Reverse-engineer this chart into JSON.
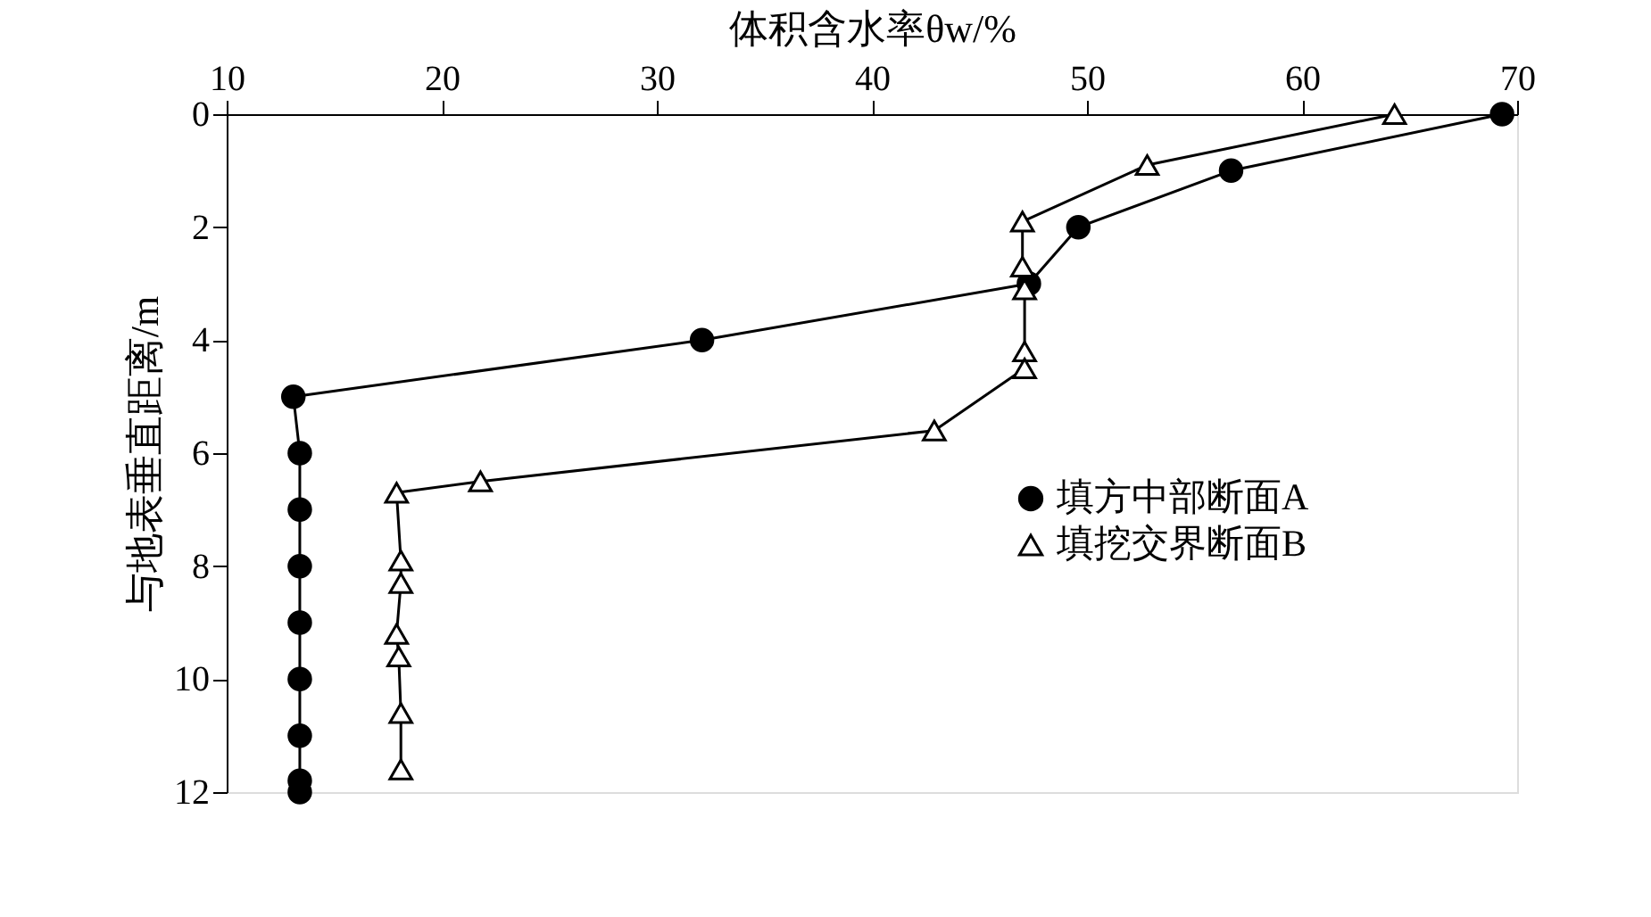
{
  "chart_data": {
    "type": "line",
    "xlabel": "体积含水率θw/%",
    "ylabel": "与地表垂直距离/m",
    "xlim": [
      10,
      70
    ],
    "xticks": [
      10,
      20,
      30,
      40,
      50,
      60,
      70
    ],
    "ylim": [
      12,
      0
    ],
    "yticks": [
      0,
      2,
      4,
      6,
      8,
      10,
      12
    ],
    "grid": false,
    "legend": "right",
    "line_style": "solid",
    "series": [
      {
        "name": "填方中部断面A",
        "color": "#000000",
        "marker": "circle",
        "x": [
          69.3,
          56.7,
          49.6,
          47.3,
          32.1,
          13.1,
          13.4,
          13.4,
          13.4,
          13.4,
          13.4,
          13.4,
          13.4,
          13.4
        ],
        "values": [
          0,
          1,
          2,
          3,
          4,
          5,
          6,
          7,
          8,
          9,
          10,
          11,
          11.8,
          12
        ]
      },
      {
        "name": "填挖交界断面B",
        "color": "#000000",
        "marker": "triangle",
        "x": [
          64.3,
          52.8,
          47.0,
          47.0,
          47.1,
          47.1,
          47.1,
          42.9,
          21.8,
          17.9,
          18.1,
          18.1,
          17.9,
          18.0,
          18.1,
          18.1
        ],
        "values": [
          0,
          0.9,
          1.9,
          2.7,
          3.1,
          4.2,
          4.5,
          5.6,
          6.5,
          6.7,
          7.9,
          8.3,
          9.2,
          9.6,
          10.6,
          11.6
        ]
      }
    ]
  }
}
